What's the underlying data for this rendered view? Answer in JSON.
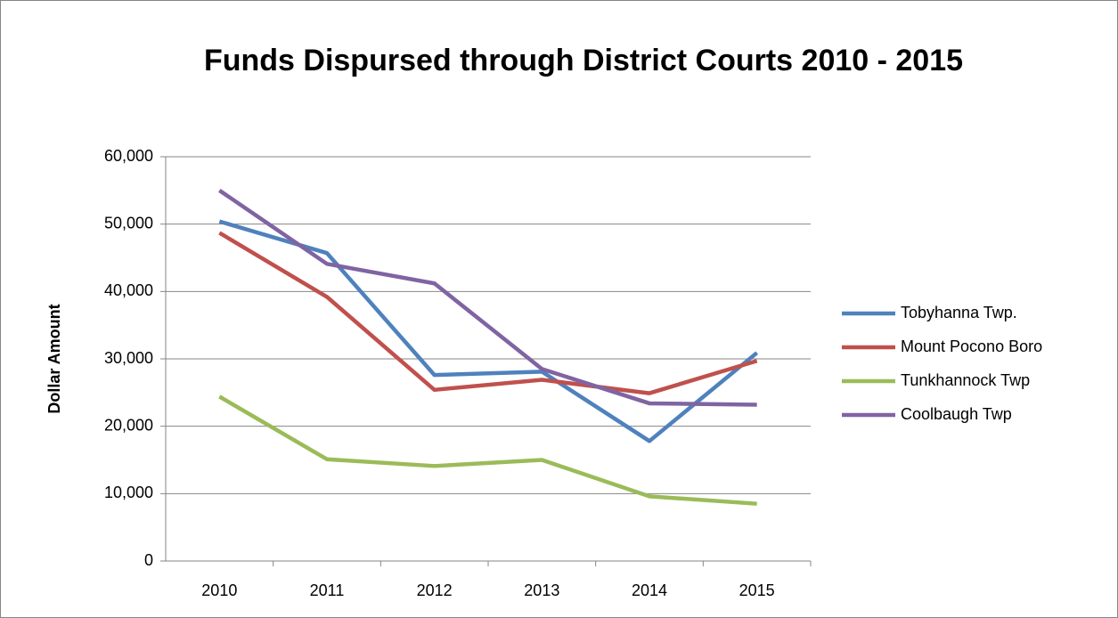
{
  "chart_data": {
    "type": "line",
    "title": "Funds Dispursed through District Courts 2010 - 2015",
    "y_axis_label": "Dollar Amount",
    "categories": [
      "2010",
      "2011",
      "2012",
      "2013",
      "2014",
      "2015"
    ],
    "series": [
      {
        "name": "Tobyhanna Twp.",
        "color": "#4f81bd",
        "values": [
          50400,
          45700,
          27600,
          28100,
          17800,
          30900
        ]
      },
      {
        "name": "Mount Pocono Boro",
        "color": "#c0504d",
        "values": [
          48700,
          39200,
          25400,
          26900,
          24900,
          29700
        ]
      },
      {
        "name": "Tunkhannock Twp",
        "color": "#9bbb59",
        "values": [
          24400,
          15100,
          14100,
          15000,
          9600,
          8500
        ]
      },
      {
        "name": "Coolbaugh Twp",
        "color": "#8064a2",
        "values": [
          55000,
          44100,
          41200,
          28500,
          23400,
          23200
        ]
      }
    ],
    "ylim": [
      0,
      60000
    ],
    "yticks": [
      0,
      {
        "value": 10000,
        "label": "10,000"
      },
      {
        "value": 20000,
        "label": "20,000"
      },
      {
        "value": 30000,
        "label": "30,000"
      },
      {
        "value": 40000,
        "label": "40,000"
      },
      {
        "value": 50000,
        "label": "50,000"
      },
      {
        "value": 60000,
        "label": "60,000"
      }
    ],
    "grid": true,
    "legend": "right"
  }
}
